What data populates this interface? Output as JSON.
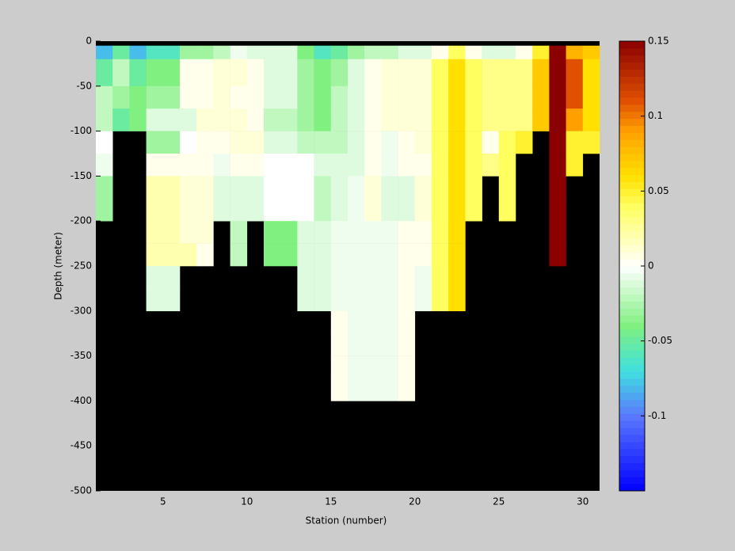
{
  "chart_data": {
    "type": "heatmap",
    "xlabel": "Station (number)",
    "ylabel": "Depth (meter)",
    "xlim": [
      1,
      31
    ],
    "ylim": [
      -500,
      0
    ],
    "xticks": [
      5,
      10,
      15,
      20,
      25,
      30
    ],
    "yticks": [
      0,
      -50,
      -100,
      -150,
      -200,
      -250,
      -300,
      -350,
      -400,
      -450,
      -500
    ],
    "y_edges": [
      0,
      -5,
      -20,
      -50,
      -75,
      -100,
      -125,
      -150,
      -175,
      -200,
      -225,
      -250,
      -275,
      -300,
      -325,
      -350,
      -375,
      -400,
      -425,
      -450,
      -475,
      -500
    ],
    "clim": [
      -0.15,
      0.15
    ],
    "cticks": [
      -0.1,
      -0.05,
      0,
      0.05,
      0.1,
      0.15
    ],
    "missing_color": "#000000",
    "colormap": [
      [
        -0.15,
        "#0000ff"
      ],
      [
        -0.1,
        "#5a78ff"
      ],
      [
        -0.07,
        "#40e0e0"
      ],
      [
        -0.04,
        "#80f080"
      ],
      [
        0,
        "#ffffff"
      ],
      [
        0.04,
        "#ffff60"
      ],
      [
        0.06,
        "#ffe000"
      ],
      [
        0.09,
        "#ffa000"
      ],
      [
        0.11,
        "#e05000"
      ],
      [
        0.15,
        "#8b0000"
      ]
    ],
    "z": [
      [
        null,
        -0.08,
        -0.05,
        -0.02,
        -0.02,
        0,
        -0.005,
        -0.03,
        -0.03,
        null,
        null,
        null,
        null,
        null,
        null,
        null,
        null,
        null,
        null,
        null,
        null
      ],
      [
        null,
        -0.05,
        -0.02,
        -0.03,
        -0.05,
        null,
        null,
        null,
        null,
        null,
        null,
        null,
        null,
        null,
        null,
        null,
        null,
        null,
        null,
        null,
        null
      ],
      [
        null,
        -0.08,
        -0.05,
        -0.04,
        -0.04,
        null,
        null,
        null,
        null,
        null,
        null,
        null,
        null,
        null,
        null,
        null,
        null,
        null,
        null,
        null,
        null
      ],
      [
        null,
        -0.06,
        -0.04,
        -0.03,
        -0.01,
        -0.03,
        0.005,
        0.02,
        0.02,
        0.02,
        0.02,
        -0.01,
        -0.01,
        null,
        null,
        null,
        null,
        null,
        null,
        null,
        null
      ],
      [
        null,
        -0.06,
        -0.04,
        -0.03,
        -0.01,
        -0.03,
        0.005,
        0.02,
        0.02,
        0.02,
        0.02,
        -0.01,
        -0.01,
        null,
        null,
        null,
        null,
        null,
        null,
        null,
        null
      ],
      [
        null,
        -0.03,
        0.005,
        0.005,
        -0.01,
        0,
        0.005,
        0.01,
        0.01,
        0.01,
        0.02,
        null,
        null,
        null,
        null,
        null,
        null,
        null,
        null,
        null,
        null
      ],
      [
        null,
        -0.03,
        0.005,
        0.005,
        0.01,
        0.005,
        0.005,
        0.01,
        0.01,
        0.01,
        0.005,
        null,
        null,
        null,
        null,
        null,
        null,
        null,
        null,
        null,
        null
      ],
      [
        null,
        -0.02,
        0.01,
        0.01,
        0.01,
        0.005,
        -0.005,
        -0.01,
        -0.01,
        null,
        null,
        null,
        null,
        null,
        null,
        null,
        null,
        null,
        null,
        null,
        null
      ],
      [
        null,
        -0.005,
        0.01,
        0.005,
        0.01,
        0.01,
        0.005,
        -0.01,
        -0.01,
        -0.02,
        -0.02,
        null,
        null,
        null,
        null,
        null,
        null,
        null,
        null,
        null,
        null
      ],
      [
        null,
        -0.01,
        0.005,
        0.005,
        0.005,
        0.01,
        0.005,
        -0.01,
        -0.01,
        null,
        null,
        null,
        null,
        null,
        null,
        null,
        null,
        null,
        null,
        null,
        null
      ],
      [
        null,
        -0.01,
        -0.01,
        -0.01,
        -0.02,
        -0.01,
        0,
        0,
        0,
        -0.04,
        -0.04,
        null,
        null,
        null,
        null,
        null,
        null,
        null,
        null,
        null,
        null
      ],
      [
        null,
        -0.01,
        -0.01,
        -0.01,
        -0.02,
        -0.01,
        0,
        0,
        0,
        -0.04,
        -0.04,
        null,
        null,
        null,
        null,
        null,
        null,
        null,
        null,
        null,
        null
      ],
      [
        null,
        -0.04,
        -0.03,
        -0.03,
        -0.03,
        -0.02,
        0,
        0,
        0,
        -0.01,
        -0.01,
        -0.01,
        -0.01,
        null,
        null,
        null,
        null,
        null,
        null,
        null,
        null
      ],
      [
        null,
        -0.06,
        -0.04,
        -0.04,
        -0.04,
        -0.02,
        -0.01,
        -0.02,
        -0.02,
        -0.01,
        -0.01,
        -0.01,
        -0.01,
        null,
        null,
        null,
        null,
        null,
        null,
        null,
        null
      ],
      [
        null,
        -0.05,
        -0.03,
        -0.02,
        -0.02,
        -0.02,
        -0.01,
        -0.01,
        -0.01,
        -0.005,
        -0.005,
        -0.005,
        -0.005,
        0.005,
        0.005,
        0.005,
        0.005,
        null,
        null,
        null,
        null
      ],
      [
        null,
        -0.03,
        -0.01,
        -0.01,
        -0.01,
        -0.01,
        -0.01,
        -0.005,
        -0.005,
        -0.005,
        -0.005,
        -0.005,
        -0.005,
        -0.005,
        -0.005,
        -0.005,
        -0.005,
        null,
        null,
        null,
        null
      ],
      [
        null,
        -0.02,
        0.005,
        0.005,
        0.005,
        0.005,
        0.005,
        0.01,
        0.01,
        -0.005,
        -0.005,
        -0.005,
        -0.005,
        -0.005,
        -0.005,
        -0.005,
        -0.005,
        null,
        null,
        null,
        null
      ],
      [
        null,
        -0.02,
        0.01,
        0.01,
        0.01,
        -0.005,
        -0.005,
        -0.01,
        -0.01,
        -0.005,
        -0.005,
        -0.005,
        -0.005,
        -0.005,
        -0.005,
        -0.005,
        -0.005,
        null,
        null,
        null,
        null
      ],
      [
        null,
        -0.01,
        0.01,
        0.01,
        0.01,
        0.005,
        0.005,
        -0.01,
        -0.01,
        0.005,
        0.005,
        0.005,
        0.005,
        0.005,
        0.005,
        0.005,
        0.005,
        null,
        null,
        null,
        null
      ],
      [
        null,
        -0.01,
        0.01,
        0.01,
        0.01,
        0.01,
        0.005,
        0.01,
        0.01,
        0.005,
        0.005,
        -0.005,
        -0.005,
        null,
        null,
        null,
        null,
        null,
        null,
        null,
        null
      ],
      [
        null,
        0.005,
        0.04,
        0.04,
        0.04,
        0.04,
        0.04,
        0.04,
        0.04,
        0.04,
        0.04,
        0.04,
        0.04,
        null,
        null,
        null,
        null,
        null,
        null,
        null,
        null
      ],
      [
        null,
        0.04,
        0.06,
        0.06,
        0.06,
        0.06,
        0.06,
        0.06,
        0.06,
        0.06,
        0.06,
        0.06,
        0.06,
        null,
        null,
        null,
        null,
        null,
        null,
        null,
        null
      ],
      [
        null,
        0.005,
        0.04,
        0.04,
        0.04,
        0.04,
        0.04,
        0.04,
        0.04,
        null,
        null,
        null,
        null,
        null,
        null,
        null,
        null,
        null,
        null,
        null,
        null
      ],
      [
        null,
        -0.01,
        0.03,
        0.03,
        0.03,
        0.005,
        0.03,
        null,
        null,
        null,
        null,
        null,
        null,
        null,
        null,
        null,
        null,
        null,
        null,
        null,
        null
      ],
      [
        null,
        -0.01,
        0.03,
        0.03,
        0.03,
        0.04,
        0.04,
        0.04,
        0.04,
        null,
        null,
        null,
        null,
        null,
        null,
        null,
        null,
        null,
        null,
        null,
        null
      ],
      [
        null,
        0.005,
        0.03,
        0.03,
        0.03,
        0.05,
        null,
        null,
        null,
        null,
        null,
        null,
        null,
        null,
        null,
        null,
        null,
        null,
        null,
        null,
        null
      ],
      [
        null,
        0.05,
        0.07,
        0.07,
        0.07,
        null,
        null,
        null,
        null,
        null,
        null,
        null,
        null,
        null,
        null,
        null,
        null,
        null,
        null,
        null,
        null
      ],
      [
        null,
        0.15,
        0.15,
        0.15,
        0.15,
        0.15,
        0.15,
        0.15,
        0.15,
        0.15,
        0.15,
        null,
        null,
        null,
        null,
        null,
        null,
        null,
        null,
        null,
        null
      ],
      [
        null,
        0.08,
        0.11,
        0.11,
        0.09,
        0.05,
        0.05,
        null,
        null,
        null,
        null,
        null,
        null,
        null,
        null,
        null,
        null,
        null,
        null,
        null,
        null
      ],
      [
        null,
        0.07,
        0.06,
        0.06,
        0.06,
        0.05,
        null,
        null,
        null,
        null,
        null,
        null,
        null,
        null,
        null,
        null,
        null,
        null,
        null,
        null,
        null
      ]
    ]
  }
}
